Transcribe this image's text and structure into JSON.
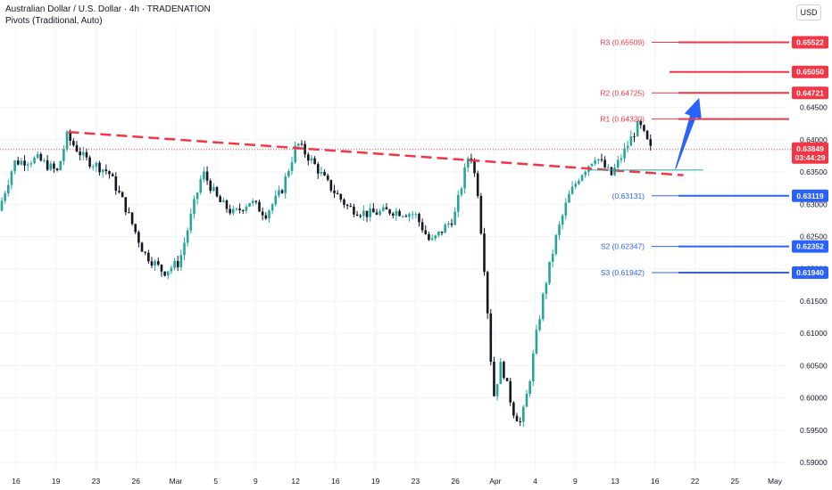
{
  "header": {
    "title": "Australian Dollar / U.S. Dollar · 4h · TRADENATION",
    "subtitle": "Pivots (Traditional, Auto)",
    "currency": "USD"
  },
  "chart_data": {
    "type": "candlestick",
    "ylim": [
      0.5885,
      0.6575
    ],
    "y_ticks": [
      0.59,
      0.595,
      0.6,
      0.605,
      0.61,
      0.615,
      0.62,
      0.625,
      0.63,
      0.635,
      0.64,
      0.645
    ],
    "x_tick_labels": [
      "16",
      "19",
      "23",
      "26",
      "Mar",
      "5",
      "9",
      "12",
      "16",
      "19",
      "23",
      "26",
      "Apr",
      "4",
      "9",
      "13",
      "16",
      "22",
      "25",
      "May"
    ],
    "price_path": [
      [
        0,
        0.629
      ],
      [
        0.02,
        0.6365
      ],
      [
        0.05,
        0.637
      ],
      [
        0.075,
        0.635
      ],
      [
        0.087,
        0.6405
      ],
      [
        0.11,
        0.637
      ],
      [
        0.14,
        0.635
      ],
      [
        0.16,
        0.63
      ],
      [
        0.185,
        0.6225
      ],
      [
        0.21,
        0.6195
      ],
      [
        0.23,
        0.621
      ],
      [
        0.25,
        0.6305
      ],
      [
        0.26,
        0.635
      ],
      [
        0.28,
        0.6305
      ],
      [
        0.3,
        0.6285
      ],
      [
        0.32,
        0.6305
      ],
      [
        0.34,
        0.6285
      ],
      [
        0.36,
        0.632
      ],
      [
        0.38,
        0.6395
      ],
      [
        0.4,
        0.6365
      ],
      [
        0.42,
        0.633
      ],
      [
        0.445,
        0.6295
      ],
      [
        0.47,
        0.6285
      ],
      [
        0.5,
        0.629
      ],
      [
        0.53,
        0.6285
      ],
      [
        0.55,
        0.624
      ],
      [
        0.58,
        0.628
      ],
      [
        0.6,
        0.6385
      ],
      [
        0.61,
        0.632
      ],
      [
        0.62,
        0.618
      ],
      [
        0.63,
        0.6
      ],
      [
        0.64,
        0.6055
      ],
      [
        0.655,
        0.598
      ],
      [
        0.665,
        0.596
      ],
      [
        0.675,
        0.602
      ],
      [
        0.685,
        0.61
      ],
      [
        0.695,
        0.617
      ],
      [
        0.71,
        0.625
      ],
      [
        0.725,
        0.631
      ],
      [
        0.74,
        0.6345
      ],
      [
        0.76,
        0.6375
      ],
      [
        0.78,
        0.6345
      ],
      [
        0.8,
        0.639
      ],
      [
        0.815,
        0.6425
      ],
      [
        0.83,
        0.6385
      ]
    ],
    "last_price": "0.63849",
    "countdown": "03:44:29",
    "pivots": [
      {
        "name": "R3 (0.65509)",
        "value": 0.65509,
        "badge": "0.65522",
        "color": "#f23645"
      },
      {
        "name": "",
        "value": 0.6505,
        "badge": "0.65050",
        "color": "#f23645"
      },
      {
        "name": "R2 (0.64725)",
        "value": 0.64725,
        "badge": "0.64721",
        "color": "#f23645"
      },
      {
        "name": "R1 (0.64320)",
        "value": 0.6432,
        "badge": "",
        "color": "#f23645"
      },
      {
        "name": "(0.63131)",
        "value": 0.63131,
        "badge": "0.63119",
        "color": "#2962ff"
      },
      {
        "name": "S2 (0.62347)",
        "value": 0.62347,
        "badge": "0.62352",
        "color": "#2962ff"
      },
      {
        "name": "S3 (0.61942)",
        "value": 0.61942,
        "badge": "0.61940",
        "color": "#2962ff"
      }
    ],
    "trendline": {
      "from": [
        0.087,
        0.6412
      ],
      "to": [
        0.87,
        0.6345
      ],
      "color": "#f23645"
    },
    "support_line": {
      "value": 0.6353,
      "color": "#26a69a"
    },
    "arrow": {
      "from": [
        0.86,
        0.6355
      ],
      "to": [
        0.89,
        0.6465
      ],
      "color": "#2962ff"
    },
    "colors": {
      "up": "#26a69a",
      "down": "#131722",
      "grid": "#f0f3fa"
    }
  }
}
